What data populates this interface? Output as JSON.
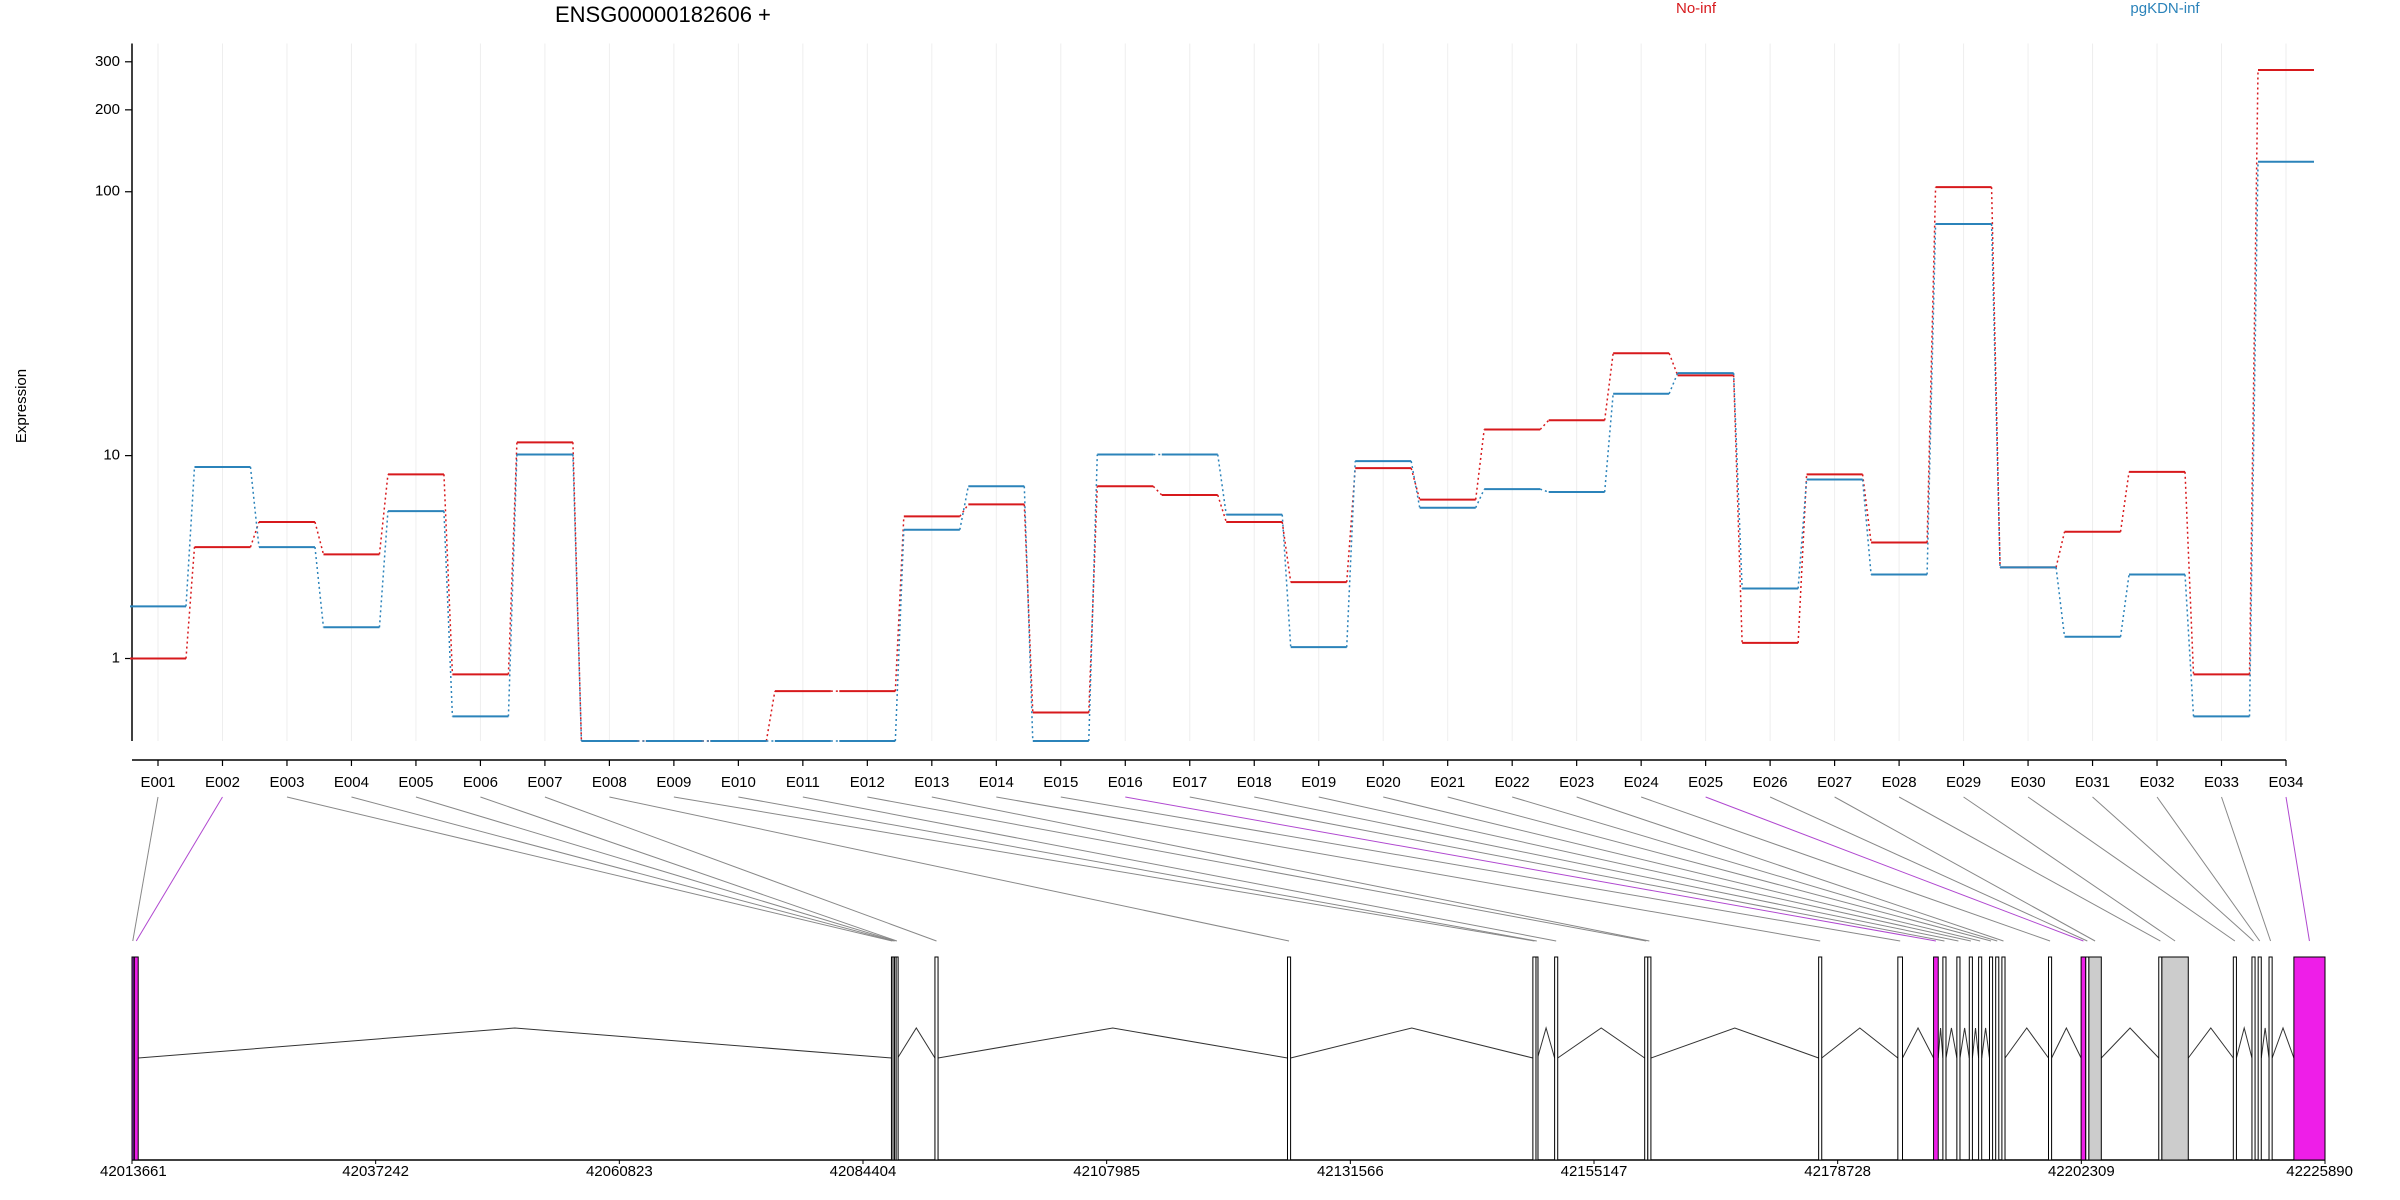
{
  "chart_data": [
    {
      "type": "step",
      "title": "ENSG00000182606 +",
      "y_label": "Expression",
      "y_scale": "log1p",
      "categories": [
        "E001",
        "E002",
        "E003",
        "E004",
        "E005",
        "E006",
        "E007",
        "E008",
        "E009",
        "E010",
        "E011",
        "E012",
        "E013",
        "E014",
        "E015",
        "E016",
        "E017",
        "E018",
        "E019",
        "E020",
        "E021",
        "E022",
        "E023",
        "E024",
        "E025",
        "E026",
        "E027",
        "E028",
        "E029",
        "E030",
        "E031",
        "E032",
        "E033",
        "E034"
      ],
      "series": [
        {
          "name": "No-inf",
          "color": "#d7191c",
          "values": [
            1,
            4.1,
            5.3,
            3.8,
            8.4,
            0.75,
            11.3,
            0,
            0,
            0,
            0.52,
            0.52,
            5.6,
            6.3,
            0.27,
            7.5,
            6.9,
            5.3,
            2.8,
            8.9,
            6.6,
            12.7,
            13.8,
            25,
            20.6,
            1.28,
            8.4,
            4.3,
            104,
            3.3,
            4.8,
            8.6,
            0.75,
            280
          ]
        },
        {
          "name": "pgKDN-inf",
          "color": "#2b83ba",
          "values": [
            2.1,
            9,
            4.1,
            1.6,
            5.9,
            0.23,
            10.1,
            0,
            0,
            0,
            0,
            0,
            4.9,
            7.5,
            0,
            10.1,
            10.1,
            5.7,
            1.2,
            9.5,
            6.1,
            7.3,
            7.1,
            17.5,
            21,
            2.6,
            8,
            3.05,
            76,
            3.3,
            1.4,
            3.05,
            0.23,
            129
          ]
        }
      ],
      "ylim": [
        0,
        350
      ],
      "yticks": [
        1,
        10,
        100,
        200,
        300
      ],
      "grid": true
    },
    {
      "type": "gene-model",
      "exons": [
        {
          "start": 42013661,
          "end": 42013811,
          "color": "#9b30c8"
        },
        {
          "start": 42013886,
          "end": 42014262,
          "color": "#ee1ee8"
        },
        {
          "start": 42087158,
          "end": 42087308,
          "color": "#ffffff"
        },
        {
          "start": 42087308,
          "end": 42087458,
          "color": "#ffffff"
        },
        {
          "start": 42087458,
          "end": 42087608,
          "color": "#ffffff"
        },
        {
          "start": 42087609,
          "end": 42087759,
          "color": "#ffffff"
        },
        {
          "start": 42091366,
          "end": 42091667,
          "color": "#ffffff"
        },
        {
          "start": 42125484,
          "end": 42125785,
          "color": "#ffffff"
        },
        {
          "start": 42149232,
          "end": 42149532,
          "color": "#ffffff"
        },
        {
          "start": 42149532,
          "end": 42149683,
          "color": "#ffffff"
        },
        {
          "start": 42151336,
          "end": 42151636,
          "color": "#ffffff"
        },
        {
          "start": 42160053,
          "end": 42160354,
          "color": "#ffffff"
        },
        {
          "start": 42160354,
          "end": 42160655,
          "color": "#ffffff"
        },
        {
          "start": 42176887,
          "end": 42177187,
          "color": "#ffffff"
        },
        {
          "start": 42184552,
          "end": 42185003,
          "color": "#ffffff"
        },
        {
          "start": 42188009,
          "end": 42188460,
          "color": "#ee1ee8"
        },
        {
          "start": 42188911,
          "end": 42189211,
          "color": "#ffffff"
        },
        {
          "start": 42190264,
          "end": 42190564,
          "color": "#ffffff"
        },
        {
          "start": 42191466,
          "end": 42191767,
          "color": "#ffffff"
        },
        {
          "start": 42192368,
          "end": 42192668,
          "color": "#ffffff"
        },
        {
          "start": 42193421,
          "end": 42193721,
          "color": "#ffffff"
        },
        {
          "start": 42194021,
          "end": 42194322,
          "color": "#ffffff"
        },
        {
          "start": 42194622,
          "end": 42194923,
          "color": "#ffffff"
        },
        {
          "start": 42199131,
          "end": 42199432,
          "color": "#ffffff"
        },
        {
          "start": 42202288,
          "end": 42202738,
          "color": "#ee1ee8"
        },
        {
          "start": 42202738,
          "end": 42203039,
          "color": "#ffffff"
        },
        {
          "start": 42203039,
          "end": 42204241,
          "color": "#cccccc"
        },
        {
          "start": 42209803,
          "end": 42210103,
          "color": "#ffffff"
        },
        {
          "start": 42210103,
          "end": 42212658,
          "color": "#cccccc"
        },
        {
          "start": 42217017,
          "end": 42217318,
          "color": "#ffffff"
        },
        {
          "start": 42218821,
          "end": 42219121,
          "color": "#ffffff"
        },
        {
          "start": 42219421,
          "end": 42219722,
          "color": "#ffffff"
        },
        {
          "start": 42220473,
          "end": 42220774,
          "color": "#ffffff"
        },
        {
          "start": 42222879,
          "end": 42225890,
          "color": "#ee1ee8"
        }
      ],
      "xlim": [
        42013661,
        42225890
      ],
      "xticks": [
        42013661,
        42037242,
        42060823,
        42084404,
        42107985,
        42131566,
        42155147,
        42178728,
        42202309,
        42225890
      ]
    }
  ]
}
